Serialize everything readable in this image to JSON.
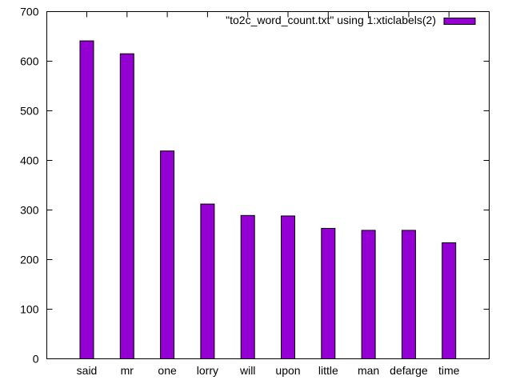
{
  "chart_data": {
    "type": "bar",
    "legend": {
      "label": "\"to2c_word_count.txt\" using 1:xticlabels(2)",
      "placement": "top-right"
    },
    "categories": [
      "said",
      "mr",
      "one",
      "lorry",
      "will",
      "upon",
      "little",
      "man",
      "defarge",
      "time"
    ],
    "series": [
      {
        "name": "\"to2c_word_count.txt\" using 1:xticlabels(2)",
        "values": [
          641,
          615,
          419,
          312,
          289,
          288,
          263,
          259,
          259,
          234
        ],
        "color": "#9400d3"
      }
    ],
    "ylim": [
      0,
      700
    ],
    "yticks": [
      0,
      100,
      200,
      300,
      400,
      500,
      600,
      700
    ],
    "xlabel": "",
    "ylabel": "",
    "grid": false
  }
}
